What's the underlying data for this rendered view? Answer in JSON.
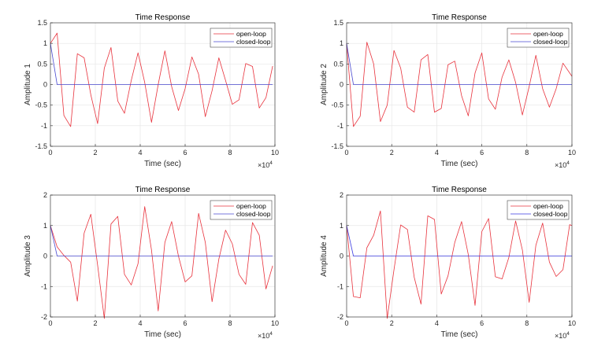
{
  "chart_data": [
    {
      "type": "line",
      "title": "Time Response",
      "xlabel": "Time (sec)",
      "ylabel": "Amplitude 1",
      "x_multiplier_label": "×10",
      "x_multiplier_exp": "4",
      "xlim": [
        0,
        10
      ],
      "ylim": [
        -1.5,
        1.5
      ],
      "xticks": [
        0,
        2,
        4,
        6,
        8,
        10
      ],
      "yticks": [
        -1.5,
        -1,
        -0.5,
        0,
        0.5,
        1,
        1.5
      ],
      "grid": true,
      "legend_position": "top-right",
      "x": [
        0,
        0.3,
        0.6,
        0.9,
        1.2,
        1.5,
        1.8,
        2.1,
        2.4,
        2.7,
        3.0,
        3.3,
        3.6,
        3.9,
        4.2,
        4.5,
        4.8,
        5.1,
        5.4,
        5.7,
        6.0,
        6.3,
        6.6,
        6.9,
        7.2,
        7.5,
        7.8,
        8.1,
        8.4,
        8.7,
        9.0,
        9.3,
        9.6,
        9.9
      ],
      "series": [
        {
          "name": "open-loop",
          "color": "#e8323c",
          "values": [
            1,
            1.25,
            -0.75,
            -1.02,
            0.75,
            0.65,
            -0.25,
            -0.95,
            0.4,
            0.9,
            -0.4,
            -0.7,
            0.1,
            0.77,
            0.05,
            -0.92,
            0,
            0.82,
            -0.05,
            -0.63,
            -0.1,
            0.67,
            0.25,
            -0.78,
            -0.15,
            0.65,
            0.1,
            -0.48,
            -0.37,
            0.51,
            0.44,
            -0.57,
            -0.32,
            0.45
          ]
        },
        {
          "name": "closed-loop",
          "color": "#4a4ad0",
          "values": [
            1,
            0,
            0,
            0,
            0,
            0,
            0,
            0,
            0,
            0,
            0,
            0,
            0,
            0,
            0,
            0,
            0,
            0,
            0,
            0,
            0,
            0,
            0,
            0,
            0,
            0,
            0,
            0,
            0,
            0,
            0,
            0,
            0,
            0
          ]
        }
      ]
    },
    {
      "type": "line",
      "title": "Time Response",
      "xlabel": "Time (sec)",
      "ylabel": "Amplitude 2",
      "x_multiplier_label": "×10",
      "x_multiplier_exp": "4",
      "xlim": [
        0,
        10
      ],
      "ylim": [
        -1.5,
        1.5
      ],
      "xticks": [
        0,
        2,
        4,
        6,
        8,
        10
      ],
      "yticks": [
        -1.5,
        -1,
        -0.5,
        0,
        0.5,
        1,
        1.5
      ],
      "grid": true,
      "legend_position": "top-right",
      "x": [
        0,
        0.3,
        0.6,
        0.9,
        1.2,
        1.5,
        1.8,
        2.1,
        2.4,
        2.7,
        3.0,
        3.3,
        3.6,
        3.9,
        4.2,
        4.5,
        4.8,
        5.1,
        5.4,
        5.7,
        6.0,
        6.3,
        6.6,
        6.9,
        7.2,
        7.5,
        7.8,
        8.1,
        8.4,
        8.7,
        9.0,
        9.3,
        9.6,
        10.0
      ],
      "series": [
        {
          "name": "open-loop",
          "color": "#e8323c",
          "values": [
            1,
            -1.02,
            -0.77,
            1.03,
            0.5,
            -0.9,
            -0.5,
            0.83,
            0.4,
            -0.55,
            -0.67,
            0.6,
            0.73,
            -0.67,
            -0.58,
            0.48,
            0.57,
            -0.27,
            -0.76,
            0.28,
            0.77,
            -0.35,
            -0.6,
            0.18,
            0.6,
            0.05,
            -0.74,
            -0.05,
            0.71,
            -0.1,
            -0.55,
            -0.1,
            0.52,
            0.2
          ]
        },
        {
          "name": "closed-loop",
          "color": "#4a4ad0",
          "values": [
            1,
            0,
            0,
            0,
            0,
            0,
            0,
            0,
            0,
            0,
            0,
            0,
            0,
            0,
            0,
            0,
            0,
            0,
            0,
            0,
            0,
            0,
            0,
            0,
            0,
            0,
            0,
            0,
            0,
            0,
            0,
            0,
            0,
            0
          ]
        }
      ]
    },
    {
      "type": "line",
      "title": "Time Response",
      "xlabel": "Time (sec)",
      "ylabel": "Amplitude 3",
      "x_multiplier_label": "×10",
      "x_multiplier_exp": "4",
      "xlim": [
        0,
        10
      ],
      "ylim": [
        -2,
        2
      ],
      "xticks": [
        0,
        2,
        4,
        6,
        8,
        10
      ],
      "yticks": [
        -2,
        -1,
        0,
        1,
        2
      ],
      "grid": true,
      "legend_position": "top-right",
      "x": [
        0,
        0.3,
        0.6,
        0.9,
        1.2,
        1.5,
        1.8,
        2.1,
        2.4,
        2.7,
        3.0,
        3.3,
        3.6,
        3.9,
        4.2,
        4.5,
        4.8,
        5.1,
        5.4,
        5.7,
        6.0,
        6.3,
        6.6,
        6.9,
        7.2,
        7.5,
        7.8,
        8.1,
        8.4,
        8.7,
        9.0,
        9.3,
        9.6,
        9.9
      ],
      "series": [
        {
          "name": "open-loop",
          "color": "#e8323c",
          "values": [
            1,
            0.3,
            0.02,
            -0.2,
            -1.48,
            0.75,
            1.37,
            -0.3,
            -2.05,
            1.05,
            1.3,
            -0.6,
            -0.95,
            -0.25,
            1.62,
            0.2,
            -1.8,
            0.45,
            1.13,
            0,
            -0.85,
            -0.65,
            1.4,
            0.45,
            -1.5,
            -0.1,
            0.85,
            0.4,
            -0.6,
            -0.93,
            1.1,
            0.68,
            -1.08,
            -0.32
          ]
        },
        {
          "name": "closed-loop",
          "color": "#4a4ad0",
          "values": [
            1,
            0,
            0,
            0,
            0,
            0,
            0,
            0,
            0,
            0,
            0,
            0,
            0,
            0,
            0,
            0,
            0,
            0,
            0,
            0,
            0,
            0,
            0,
            0,
            0,
            0,
            0,
            0,
            0,
            0,
            0,
            0,
            0,
            0
          ]
        }
      ]
    },
    {
      "type": "line",
      "title": "Time Response",
      "xlabel": "Time (sec)",
      "ylabel": "Amplitude 4",
      "x_multiplier_label": "×10",
      "x_multiplier_exp": "4",
      "xlim": [
        0,
        10
      ],
      "ylim": [
        -2,
        2
      ],
      "xticks": [
        0,
        2,
        4,
        6,
        8,
        10
      ],
      "yticks": [
        -2,
        -1,
        0,
        1,
        2
      ],
      "grid": true,
      "legend_position": "top-right",
      "x": [
        0,
        0.3,
        0.6,
        0.9,
        1.2,
        1.5,
        1.8,
        2.1,
        2.4,
        2.7,
        3.0,
        3.3,
        3.6,
        3.9,
        4.2,
        4.5,
        4.8,
        5.1,
        5.4,
        5.7,
        6.0,
        6.3,
        6.6,
        6.9,
        7.2,
        7.5,
        7.8,
        8.1,
        8.4,
        8.7,
        9.0,
        9.3,
        9.6,
        9.9,
        10.0
      ],
      "series": [
        {
          "name": "open-loop",
          "color": "#e8323c",
          "values": [
            1,
            -1.33,
            -1.37,
            0.27,
            0.68,
            1.48,
            -2.05,
            -0.45,
            1.02,
            0.87,
            -0.7,
            -1.58,
            1.32,
            1.2,
            -1.25,
            -0.65,
            0.45,
            1.13,
            0.05,
            -1.62,
            0.8,
            1.23,
            -0.68,
            -0.75,
            -0.05,
            1.15,
            0.2,
            -1.52,
            0.35,
            1.08,
            -0.2,
            -0.67,
            -0.45,
            1.03,
            1.0
          ]
        },
        {
          "name": "closed-loop",
          "color": "#3a3ae0",
          "values": [
            1,
            0,
            0,
            0,
            0,
            0,
            0,
            0,
            0,
            0,
            0,
            0,
            0,
            0,
            0,
            0,
            0,
            0,
            0,
            0,
            0,
            0,
            0,
            0,
            0,
            0,
            0,
            0,
            0,
            0,
            0,
            0,
            0,
            0,
            0
          ]
        }
      ]
    }
  ]
}
